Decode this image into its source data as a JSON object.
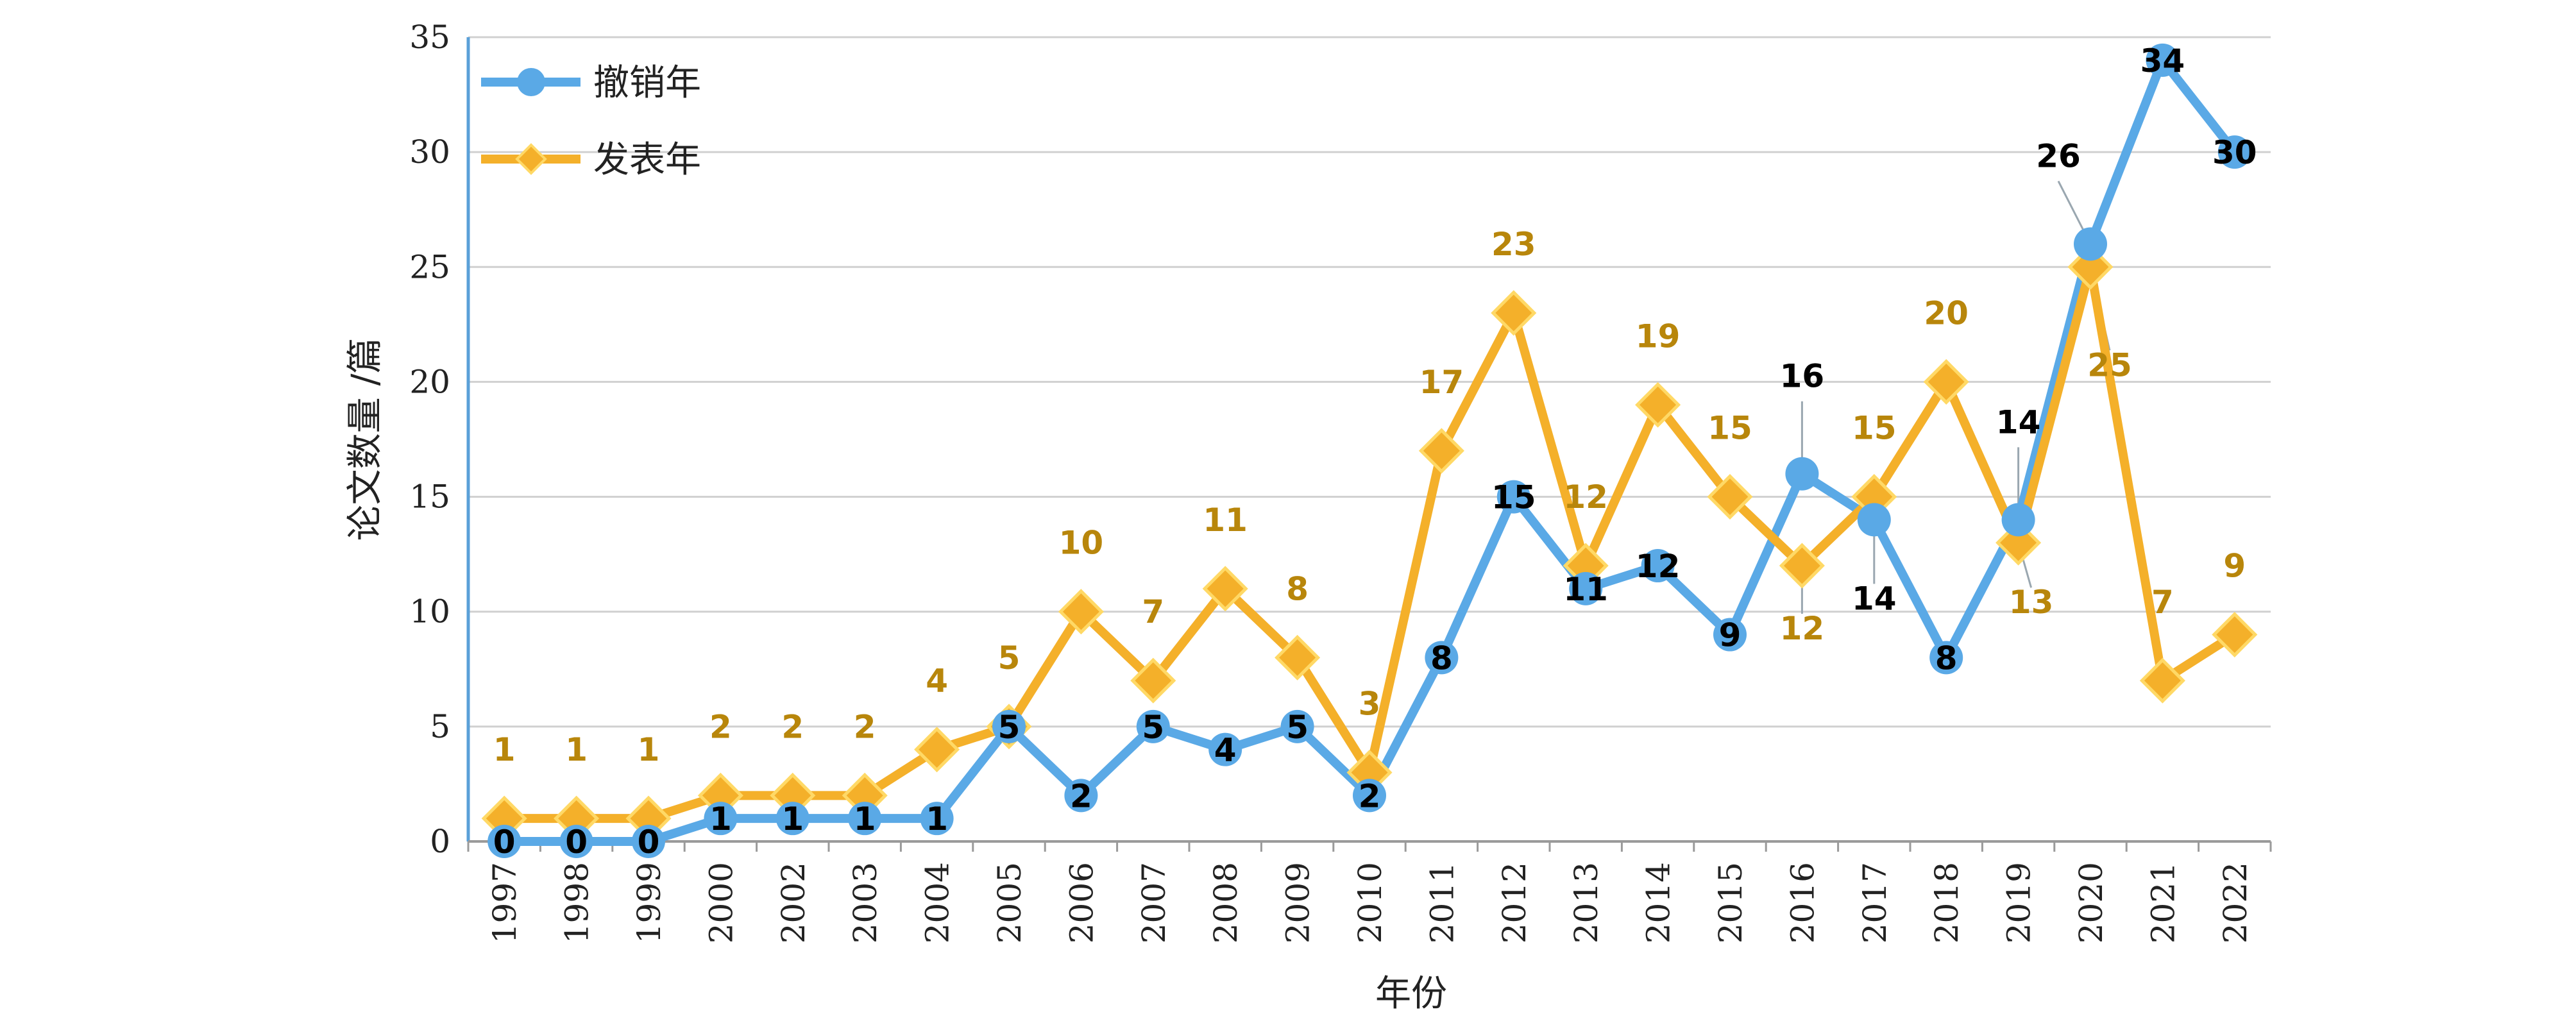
{
  "chart_data": {
    "type": "line",
    "title": "",
    "xlabel": "年份",
    "ylabel": "论文数量 /篇",
    "ylim": [
      0,
      35
    ],
    "yticks": [
      0,
      5,
      10,
      15,
      20,
      25,
      30,
      35
    ],
    "grid": true,
    "legend_position": "top-left",
    "categories": [
      "1997",
      "1998",
      "1999",
      "2000",
      "2002",
      "2003",
      "2004",
      "2005",
      "2006",
      "2007",
      "2008",
      "2009",
      "2010",
      "2011",
      "2012",
      "2013",
      "2014",
      "2015",
      "2016",
      "2017",
      "2018",
      "2019",
      "2020",
      "2021",
      "2022"
    ],
    "series": [
      {
        "name": "撤销年",
        "color": "#5aa9e6",
        "marker": "circle",
        "values": [
          0,
          0,
          0,
          1,
          1,
          1,
          1,
          5,
          2,
          5,
          4,
          5,
          2,
          8,
          15,
          11,
          12,
          9,
          16,
          14,
          8,
          14,
          26,
          34,
          30
        ]
      },
      {
        "name": "发表年",
        "color": "#f4b02a",
        "marker": "diamond",
        "values": [
          1,
          1,
          1,
          2,
          2,
          2,
          4,
          5,
          10,
          7,
          11,
          8,
          3,
          17,
          23,
          12,
          19,
          15,
          12,
          15,
          20,
          13,
          25,
          7,
          9
        ]
      }
    ]
  }
}
